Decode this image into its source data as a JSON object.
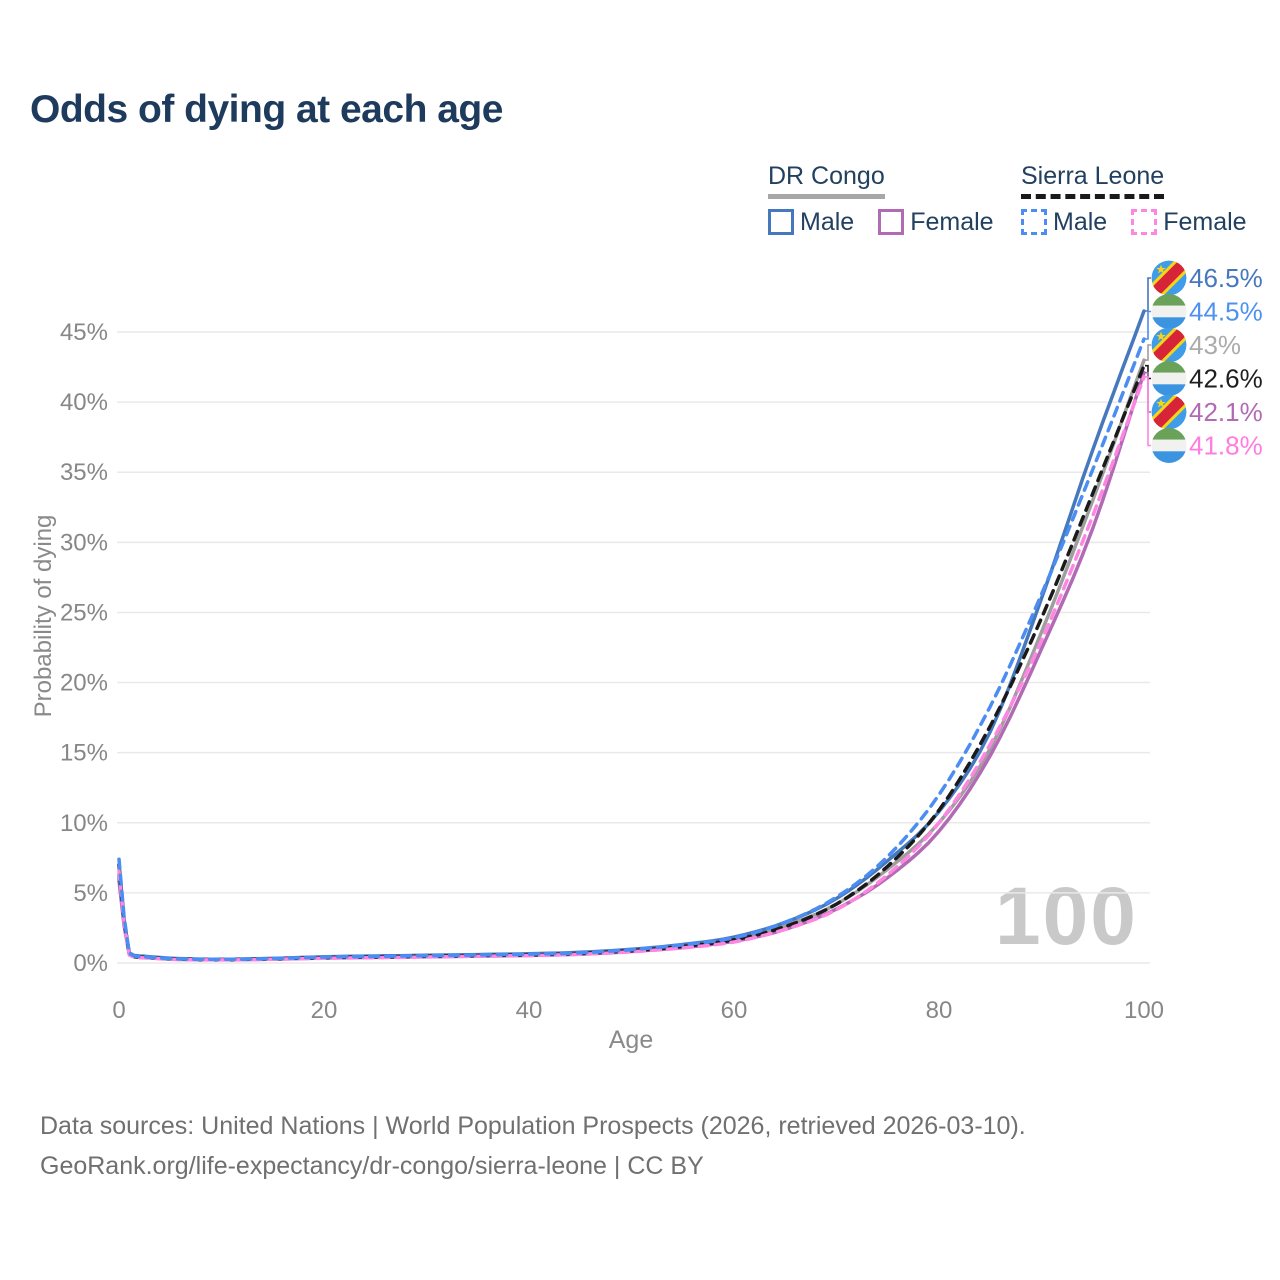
{
  "title": "Odds of dying at each age",
  "legend": {
    "groups": [
      {
        "name": "DR Congo",
        "style": "solid",
        "underline_color": "#a7a7a7",
        "items": [
          {
            "label": "Male",
            "color": "#4678bd"
          },
          {
            "label": "Female",
            "color": "#b16ab4"
          }
        ]
      },
      {
        "name": "Sierra Leone",
        "style": "dashed",
        "underline_color": "#1a1a1a",
        "items": [
          {
            "label": "Male",
            "color": "#4b8df2"
          },
          {
            "label": "Female",
            "color": "#ff85e2"
          }
        ]
      }
    ]
  },
  "watermark": "100",
  "footer": {
    "line1": "Data sources: United Nations | World Population Prospects (2026, retrieved 2026-03-10).",
    "line2": "GeoRank.org/life-expectancy/dr-congo/sierra-leone | CC BY"
  },
  "flags": {
    "cd": {
      "bg": "#3f9ce8",
      "band_outer": "#f6d418",
      "band_inner": "#d62438",
      "star": "#f6d418"
    },
    "sl": {
      "top": "#6ba25a",
      "middle": "#f1f1ef",
      "bottom": "#3b94df"
    }
  },
  "chart_data": {
    "type": "line",
    "title": "Odds of dying at each age",
    "xlabel": "Age",
    "ylabel": "Probability of dying",
    "xlim": [
      0,
      100
    ],
    "ylim": [
      0,
      47.5
    ],
    "grid": "horizontal",
    "legend_position": "top-right",
    "x_ticks": [
      0,
      20,
      40,
      60,
      80,
      100
    ],
    "x_tick_labels": [
      "0",
      "20",
      "40",
      "60",
      "80",
      "100"
    ],
    "y_ticks": [
      0,
      5,
      10,
      15,
      20,
      25,
      30,
      35,
      40,
      45
    ],
    "y_tick_labels": [
      "0%",
      "5%",
      "10%",
      "15%",
      "20%",
      "25%",
      "30%",
      "35%",
      "40%",
      "45%"
    ],
    "ages": [
      0,
      1,
      2,
      5,
      10,
      15,
      20,
      25,
      30,
      35,
      40,
      45,
      50,
      55,
      60,
      65,
      70,
      75,
      80,
      85,
      90,
      95,
      100
    ],
    "series": [
      {
        "key": "drc_male",
        "name": "DR Congo Male",
        "country": "DR Congo",
        "sex": "Male",
        "color": "#4678bd",
        "dash": "solid",
        "flag": "cd",
        "end_label": "46.5%",
        "label_color": "#4678bd",
        "values": [
          6.3,
          0.72,
          0.5,
          0.34,
          0.27,
          0.33,
          0.44,
          0.5,
          0.55,
          0.6,
          0.66,
          0.76,
          0.98,
          1.32,
          1.85,
          2.9,
          4.6,
          7.3,
          10.8,
          16.5,
          26.0,
          36.6,
          46.5
        ]
      },
      {
        "key": "sl_male",
        "name": "Sierra Leone Male",
        "country": "Sierra Leone",
        "sex": "Male",
        "color": "#4b8df2",
        "dash": "dashed",
        "flag": "sl",
        "end_label": "44.5%",
        "label_color": "#4e92f0",
        "values": [
          7.4,
          0.68,
          0.46,
          0.31,
          0.26,
          0.32,
          0.42,
          0.47,
          0.52,
          0.57,
          0.63,
          0.73,
          0.95,
          1.3,
          1.8,
          2.9,
          4.7,
          7.6,
          12.0,
          18.3,
          26.3,
          35.2,
          44.5
        ]
      },
      {
        "key": "drc_both",
        "name": "DR Congo Both sexes",
        "country": "DR Congo",
        "sex": "Both",
        "color": "#9e9e9e",
        "dash": "solid",
        "flag": "cd",
        "end_label": "43%",
        "label_color": "#ababab",
        "values": [
          6.1,
          0.66,
          0.46,
          0.31,
          0.25,
          0.3,
          0.4,
          0.45,
          0.5,
          0.55,
          0.6,
          0.7,
          0.9,
          1.2,
          1.7,
          2.65,
          4.2,
          6.7,
          10.0,
          15.3,
          23.6,
          33.0,
          43.0
        ]
      },
      {
        "key": "sl_both",
        "name": "Sierra Leone Both sexes",
        "country": "Sierra Leone",
        "sex": "Both",
        "color": "#1a1a1a",
        "dash": "dashed",
        "flag": "sl",
        "end_label": "42.6%",
        "label_color": "#1f1f1f",
        "values": [
          7.0,
          0.62,
          0.42,
          0.29,
          0.24,
          0.3,
          0.38,
          0.43,
          0.48,
          0.53,
          0.58,
          0.68,
          0.88,
          1.18,
          1.65,
          2.6,
          4.2,
          6.9,
          10.9,
          16.9,
          24.6,
          33.5,
          42.6
        ]
      },
      {
        "key": "drc_female",
        "name": "DR Congo Female",
        "country": "DR Congo",
        "sex": "Female",
        "color": "#b16ab4",
        "dash": "solid",
        "flag": "cd",
        "end_label": "42.1%",
        "label_color": "#b16ab4",
        "values": [
          5.9,
          0.6,
          0.42,
          0.28,
          0.23,
          0.27,
          0.35,
          0.4,
          0.44,
          0.49,
          0.54,
          0.63,
          0.82,
          1.1,
          1.55,
          2.4,
          3.85,
          6.1,
          9.4,
          14.8,
          22.4,
          31.0,
          42.1
        ]
      },
      {
        "key": "sl_female",
        "name": "Sierra Leone Female",
        "country": "Sierra Leone",
        "sex": "Female",
        "color": "#ff85e2",
        "dash": "dashed",
        "flag": "sl",
        "end_label": "41.8%",
        "label_color": "#ff7ce0",
        "values": [
          6.6,
          0.57,
          0.38,
          0.26,
          0.22,
          0.27,
          0.34,
          0.38,
          0.43,
          0.48,
          0.53,
          0.62,
          0.8,
          1.08,
          1.5,
          2.4,
          3.8,
          6.3,
          10.0,
          15.6,
          23.0,
          31.9,
          41.8
        ]
      }
    ]
  }
}
